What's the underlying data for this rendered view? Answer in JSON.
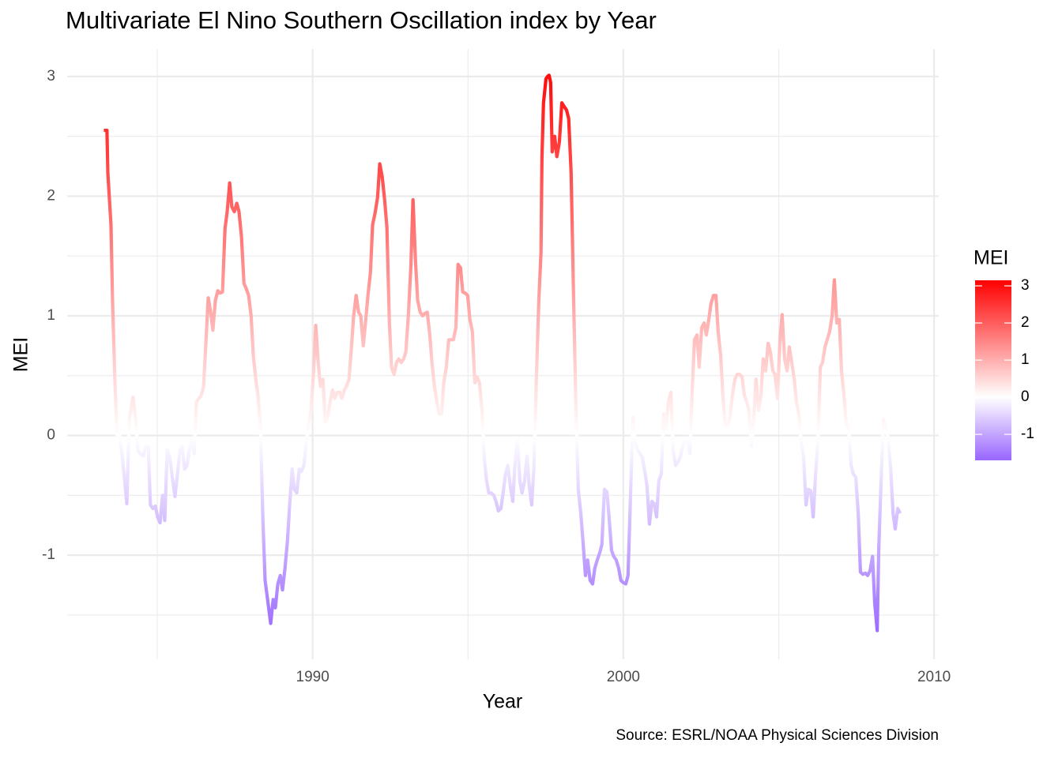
{
  "chart_data": {
    "type": "line",
    "title": "Multivariate El Nino Southern Oscillation index by Year",
    "xlabel": "Year",
    "ylabel": "MEI",
    "caption": "Source: ESRL/NOAA Physical Sciences Division",
    "legend_title": "MEI",
    "xlim": [
      1982.1,
      2010.15
    ],
    "xticks": [
      1990,
      2000,
      2010
    ],
    "xminor": [
      1985,
      1995,
      2005
    ],
    "ylim": [
      -1.87,
      3.23
    ],
    "yticks": [
      -1,
      0,
      1,
      2,
      3
    ],
    "yminor": [
      -1.5,
      -0.5,
      0.5,
      1.5,
      2.5
    ],
    "grid": true,
    "legend_position": "right",
    "color_scale": {
      "low": "#9966ff",
      "mid": "#ffffff",
      "high": "#ff0000",
      "midpoint": 0,
      "limits": [
        -1.7,
        3.15
      ],
      "ticks": [
        -1,
        0,
        1,
        2,
        3
      ]
    },
    "x": [
      1983.28,
      1983.38,
      1983.41,
      1983.51,
      1983.56,
      1983.64,
      1983.71,
      1983.79,
      1983.87,
      1983.94,
      1984.02,
      1984.1,
      1984.22,
      1984.3,
      1984.38,
      1984.45,
      1984.55,
      1984.63,
      1984.71,
      1984.78,
      1984.86,
      1984.94,
      1985.01,
      1985.09,
      1985.17,
      1985.24,
      1985.32,
      1985.4,
      1985.47,
      1985.57,
      1985.65,
      1985.73,
      1985.8,
      1985.88,
      1985.96,
      1986.03,
      1986.11,
      1986.19,
      1986.26,
      1986.34,
      1986.41,
      1986.49,
      1986.57,
      1986.64,
      1986.72,
      1986.79,
      1986.87,
      1986.95,
      1987.02,
      1987.1,
      1987.18,
      1987.25,
      1987.33,
      1987.4,
      1987.48,
      1987.56,
      1987.63,
      1987.71,
      1987.79,
      1987.86,
      1987.94,
      1988.02,
      1988.09,
      1988.17,
      1988.24,
      1988.32,
      1988.4,
      1988.47,
      1988.55,
      1988.65,
      1988.73,
      1988.8,
      1988.88,
      1988.96,
      1989.03,
      1989.11,
      1989.19,
      1989.26,
      1989.34,
      1989.41,
      1989.49,
      1989.57,
      1989.64,
      1989.72,
      1989.8,
      1989.87,
      1989.95,
      1990.03,
      1990.1,
      1990.18,
      1990.25,
      1990.33,
      1990.41,
      1990.48,
      1990.56,
      1990.64,
      1990.71,
      1990.79,
      1990.87,
      1990.94,
      1991.02,
      1991.09,
      1991.17,
      1991.25,
      1991.32,
      1991.4,
      1991.48,
      1991.55,
      1991.63,
      1991.7,
      1991.78,
      1991.86,
      1991.93,
      1992.01,
      1992.09,
      1992.16,
      1992.24,
      1992.32,
      1992.39,
      1992.47,
      1992.54,
      1992.62,
      1992.7,
      1992.77,
      1992.85,
      1992.93,
      1993.0,
      1993.08,
      1993.16,
      1993.23,
      1993.31,
      1993.38,
      1993.46,
      1993.54,
      1993.61,
      1993.69,
      1993.77,
      1993.84,
      1993.92,
      1994.0,
      1994.07,
      1994.15,
      1994.22,
      1994.3,
      1994.38,
      1994.45,
      1994.53,
      1994.61,
      1994.68,
      1994.76,
      1994.83,
      1994.91,
      1994.99,
      1995.06,
      1995.14,
      1995.22,
      1995.29,
      1995.37,
      1995.45,
      1995.52,
      1995.6,
      1995.67,
      1995.75,
      1995.83,
      1995.9,
      1995.98,
      1996.06,
      1996.13,
      1996.21,
      1996.28,
      1996.36,
      1996.44,
      1996.51,
      1996.59,
      1996.67,
      1996.74,
      1996.82,
      1996.9,
      1996.97,
      1997.05,
      1997.12,
      1997.2,
      1997.28,
      1997.35,
      1997.38,
      1997.43,
      1997.51,
      1997.56,
      1997.61,
      1997.66,
      1997.71,
      1997.79,
      1997.86,
      1997.94,
      1998.02,
      1998.09,
      1998.17,
      1998.24,
      1998.32,
      1998.4,
      1998.47,
      1998.55,
      1998.63,
      1998.7,
      1998.78,
      1998.85,
      1998.93,
      1999.01,
      1999.08,
      1999.16,
      1999.24,
      1999.31,
      1999.39,
      1999.47,
      1999.54,
      1999.62,
      1999.69,
      1999.77,
      1999.85,
      1999.92,
      2000.0,
      2000.08,
      2000.15,
      2000.23,
      2000.31,
      2000.38,
      2000.46,
      2000.53,
      2000.61,
      2000.69,
      2000.76,
      2000.84,
      2000.92,
      2000.99,
      2001.07,
      2001.14,
      2001.22,
      2001.3,
      2001.37,
      2001.45,
      2001.53,
      2001.6,
      2001.68,
      2001.76,
      2001.83,
      2001.91,
      2001.98,
      2002.06,
      2002.14,
      2002.21,
      2002.29,
      2002.37,
      2002.44,
      2002.52,
      2002.6,
      2002.67,
      2002.75,
      2002.82,
      2002.9,
      2002.98,
      2003.05,
      2003.13,
      2003.21,
      2003.28,
      2003.36,
      2003.43,
      2003.51,
      2003.59,
      2003.66,
      2003.74,
      2003.82,
      2003.89,
      2003.97,
      2004.04,
      2004.12,
      2004.2,
      2004.27,
      2004.35,
      2004.43,
      2004.5,
      2004.58,
      2004.66,
      2004.73,
      2004.81,
      2004.88,
      2004.96,
      2005.04,
      2005.11,
      2005.19,
      2005.27,
      2005.34,
      2005.42,
      2005.5,
      2005.57,
      2005.65,
      2005.72,
      2005.8,
      2005.88,
      2005.95,
      2006.03,
      2006.11,
      2006.18,
      2006.26,
      2006.34,
      2006.41,
      2006.49,
      2006.56,
      2006.64,
      2006.72,
      2006.79,
      2006.87,
      2006.95,
      2007.02,
      2007.1,
      2007.18,
      2007.25,
      2007.33,
      2007.4,
      2007.48,
      2007.56,
      2007.63,
      2007.71,
      2007.79,
      2007.86,
      2007.94,
      2008.02,
      2008.09,
      2008.17,
      2008.22,
      2008.3,
      2008.37,
      2008.45,
      2008.52,
      2008.6,
      2008.68,
      2008.75,
      2008.83,
      2008.91
    ],
    "values": [
      2.55,
      2.55,
      2.19,
      1.76,
      1.13,
      0.42,
      0,
      0,
      -0.17,
      -0.35,
      -0.57,
      0.13,
      0.32,
      0.15,
      -0.13,
      -0.15,
      -0.17,
      -0.09,
      -0.09,
      -0.58,
      -0.61,
      -0.59,
      -0.68,
      -0.73,
      -0.5,
      -0.71,
      -0.12,
      -0.18,
      -0.32,
      -0.51,
      -0.32,
      -0.12,
      -0.09,
      -0.28,
      -0.25,
      -0.12,
      -0.04,
      -0.15,
      0.28,
      0.31,
      0.33,
      0.41,
      0.8,
      1.15,
      1.03,
      0.88,
      1.13,
      1.21,
      1.19,
      1.2,
      1.73,
      1.87,
      2.11,
      1.91,
      1.87,
      1.94,
      1.87,
      1.66,
      1.27,
      1.23,
      1.17,
      1.0,
      0.67,
      0.47,
      0.34,
      0.08,
      -0.71,
      -1.21,
      -1.37,
      -1.57,
      -1.37,
      -1.44,
      -1.24,
      -1.17,
      -1.29,
      -1.11,
      -0.88,
      -0.58,
      -0.28,
      -0.45,
      -0.48,
      -0.28,
      -0.3,
      -0.25,
      -0.05,
      0.08,
      0.21,
      0.54,
      0.92,
      0.61,
      0.41,
      0.47,
      0.11,
      0.15,
      0.28,
      0.38,
      0.31,
      0.36,
      0.36,
      0.31,
      0.38,
      0.41,
      0.47,
      0.74,
      1.0,
      1.17,
      1.03,
      1.0,
      0.75,
      0.94,
      1.17,
      1.36,
      1.76,
      1.86,
      1.99,
      2.27,
      2.16,
      1.96,
      1.74,
      0.94,
      0.57,
      0.51,
      0.61,
      0.64,
      0.61,
      0.64,
      0.7,
      1.0,
      1.4,
      1.97,
      1.46,
      1.13,
      1.03,
      1.0,
      1.02,
      1.03,
      0.84,
      0.61,
      0.41,
      0.28,
      0.18,
      0.18,
      0.44,
      0.57,
      0.8,
      0.8,
      0.8,
      0.9,
      1.43,
      1.4,
      1.2,
      1.19,
      1.17,
      0.97,
      0.87,
      0.44,
      0.49,
      0.44,
      0.21,
      -0.18,
      -0.38,
      -0.48,
      -0.48,
      -0.5,
      -0.55,
      -0.63,
      -0.61,
      -0.48,
      -0.32,
      -0.25,
      -0.42,
      -0.55,
      -0.25,
      -0.02,
      -0.38,
      -0.48,
      -0.38,
      -0.17,
      -0.42,
      -0.58,
      -0.28,
      0.47,
      1.13,
      1.53,
      2.32,
      2.78,
      2.98,
      3.0,
      3.01,
      2.95,
      2.37,
      2.5,
      2.33,
      2.45,
      2.78,
      2.75,
      2.72,
      2.65,
      2.19,
      1.13,
      0.28,
      -0.45,
      -0.65,
      -0.88,
      -1.17,
      -1.04,
      -1.21,
      -1.24,
      -1.11,
      -1.04,
      -0.98,
      -0.91,
      -0.45,
      -0.47,
      -0.68,
      -0.96,
      -1.01,
      -1.04,
      -1.11,
      -1.21,
      -1.23,
      -1.24,
      -1.17,
      -0.51,
      0.15,
      -0.05,
      -0.12,
      -0.15,
      -0.18,
      -0.3,
      -0.42,
      -0.74,
      -0.55,
      -0.57,
      -0.68,
      -0.38,
      -0.32,
      0.18,
      0.05,
      0.28,
      0.36,
      -0.12,
      -0.25,
      -0.22,
      -0.18,
      -0.09,
      -0.05,
      -0.05,
      -0.15,
      0.34,
      0.8,
      0.84,
      0.57,
      0.9,
      0.94,
      0.84,
      0.97,
      1.1,
      1.17,
      1.17,
      0.87,
      0.67,
      0.31,
      0.08,
      0.08,
      0.15,
      0.34,
      0.47,
      0.51,
      0.51,
      0.49,
      0.34,
      0.28,
      0.21,
      -0.09,
      0.15,
      0.47,
      0.21,
      0.34,
      0.64,
      0.54,
      0.77,
      0.7,
      0.54,
      0.51,
      0.31,
      0.8,
      1.01,
      0.64,
      0.54,
      0.74,
      0.61,
      0.47,
      0.28,
      0.18,
      -0.05,
      -0.18,
      -0.58,
      -0.45,
      -0.46,
      -0.68,
      -0.35,
      -0.05,
      0.57,
      0.61,
      0.74,
      0.8,
      0.87,
      1.0,
      1.3,
      0.94,
      0.97,
      0.54,
      0.34,
      0.08,
      0.08,
      -0.25,
      -0.32,
      -0.35,
      -0.65,
      -1.14,
      -1.16,
      -1.15,
      -1.17,
      -1.13,
      -1.01,
      -1.4,
      -1.63,
      -0.94,
      -0.35,
      0.13,
      0.05,
      -0.02,
      -0.26,
      -0.65,
      -0.78,
      -0.61,
      -0.65
    ]
  }
}
